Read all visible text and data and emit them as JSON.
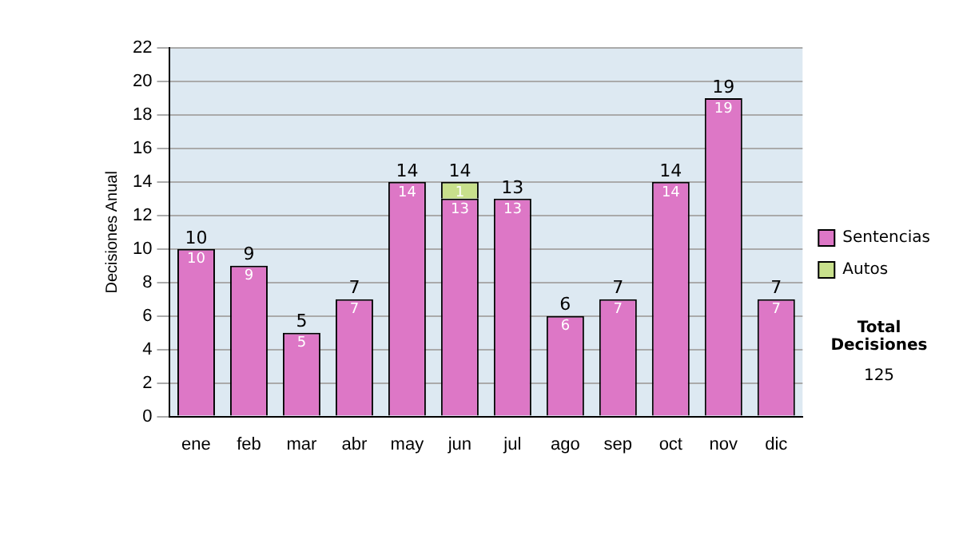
{
  "chart_data": {
    "type": "bar",
    "stacked": true,
    "ylabel": "Decisiones Anual",
    "categories": [
      "ene",
      "feb",
      "mar",
      "abr",
      "may",
      "jun",
      "jul",
      "ago",
      "sep",
      "oct",
      "nov",
      "dic"
    ],
    "series": [
      {
        "name": "Sentencias",
        "color": "#dd77c6",
        "values": [
          10,
          9,
          5,
          7,
          14,
          13,
          13,
          6,
          7,
          14,
          19,
          7
        ]
      },
      {
        "name": "Autos",
        "color": "#c8e08c",
        "values": [
          null,
          null,
          null,
          null,
          null,
          1,
          null,
          null,
          null,
          null,
          null,
          null
        ]
      }
    ],
    "ylim": [
      0,
      22
    ],
    "yticks": [
      0,
      2,
      4,
      6,
      8,
      10,
      12,
      14,
      16,
      18,
      20,
      22
    ],
    "grid": "y",
    "legend": "right",
    "data_labels": true,
    "totals": [
      "10",
      "9",
      "5",
      "7",
      "14",
      "14",
      "13",
      "6",
      "7",
      "14",
      "19",
      "7"
    ],
    "annotations": [
      "Total Decisiones",
      "125"
    ]
  }
}
